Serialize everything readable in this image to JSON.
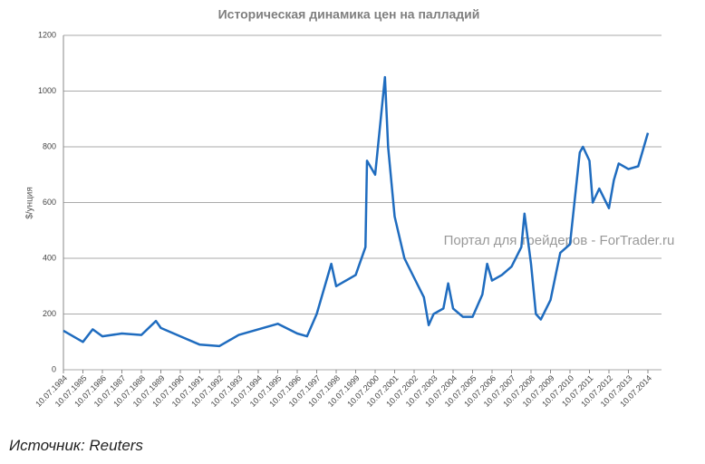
{
  "chart_data": {
    "type": "line",
    "title": "Историческая динамика цен на палладий",
    "y_label": "$/унция",
    "watermark": "Портал для трейдеров - ForTrader.ru",
    "source": "Источник: Reuters",
    "ylim": [
      0,
      1200
    ],
    "yticks": [
      0,
      200,
      400,
      600,
      800,
      1000,
      1200
    ],
    "grid": true,
    "xlim": [
      "10.07.1984",
      "10.07.2014"
    ],
    "xticks": [
      "10.07.1984",
      "10.07.1985",
      "10.07.1986",
      "10.07.1987",
      "10.07.1988",
      "10.07.1989",
      "10.07.1990",
      "10.07.1991",
      "10.07.1992",
      "10.07.1993",
      "10.07.1994",
      "10.07.1995",
      "10.07.1996",
      "10.07.1997",
      "10.07.1998",
      "10.07.1999",
      "10.07.2000",
      "10.07.2001",
      "10.07.2002",
      "10.07.2003",
      "10.07.2004",
      "10.07.2005",
      "10.07.2006",
      "10.07.2007",
      "10.07.2008",
      "10.07.2009",
      "10.07.2010",
      "10.07.2011",
      "10.07.2012",
      "10.07.2013",
      "10.07.2014"
    ],
    "x": [
      "10.07.1984",
      "10.07.1985",
      "10.01.1986",
      "10.07.1986",
      "10.07.1987",
      "10.07.1988",
      "10.04.1989",
      "10.07.1989",
      "10.07.1990",
      "10.07.1991",
      "10.07.1992",
      "10.07.1993",
      "10.07.1994",
      "10.07.1995",
      "10.07.1996",
      "10.01.1997",
      "10.07.1997",
      "10.04.1998",
      "10.07.1998",
      "10.07.1999",
      "10.01.2000",
      "10.02.2000",
      "10.07.2000",
      "10.01.2001",
      "10.03.2001",
      "10.07.2001",
      "10.01.2002",
      "10.07.2002",
      "10.01.2003",
      "10.04.2003",
      "10.07.2003",
      "10.01.2004",
      "10.04.2004",
      "10.07.2004",
      "10.01.2005",
      "10.07.2005",
      "10.01.2006",
      "10.04.2006",
      "10.07.2006",
      "10.01.2007",
      "10.07.2007",
      "10.01.2008",
      "10.03.2008",
      "10.07.2008",
      "10.10.2008",
      "10.01.2009",
      "10.07.2009",
      "10.01.2010",
      "10.07.2010",
      "10.01.2011",
      "10.03.2011",
      "10.07.2011",
      "10.09.2011",
      "10.01.2012",
      "10.07.2012",
      "10.10.2012",
      "10.01.2013",
      "10.07.2013",
      "10.01.2014",
      "10.07.2014"
    ],
    "series": [
      {
        "name": "Палладий",
        "color": "#1f6cbf",
        "values": [
          140,
          100,
          145,
          120,
          130,
          125,
          175,
          150,
          120,
          90,
          85,
          125,
          145,
          165,
          130,
          120,
          200,
          380,
          300,
          340,
          440,
          750,
          700,
          1050,
          800,
          550,
          400,
          330,
          260,
          160,
          200,
          220,
          310,
          220,
          190,
          190,
          270,
          380,
          320,
          340,
          370,
          440,
          560,
          380,
          200,
          180,
          250,
          420,
          450,
          780,
          800,
          750,
          600,
          650,
          580,
          680,
          740,
          720,
          730,
          850
        ]
      }
    ]
  }
}
